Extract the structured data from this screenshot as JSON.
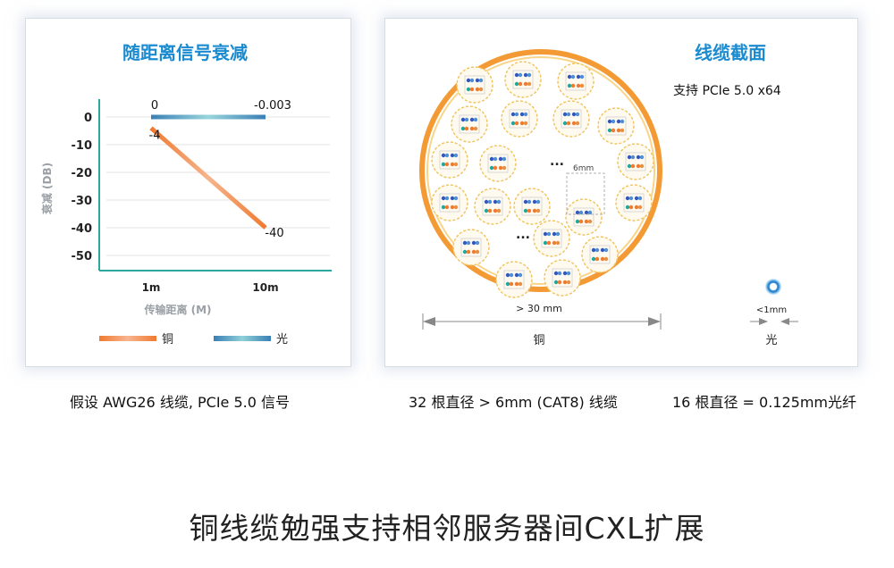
{
  "left_panel": {
    "title": "随距离信号衰减",
    "legend": [
      {
        "label": "铜",
        "color": "#f07a30"
      },
      {
        "label": "光",
        "color": "#3a8fc0"
      }
    ],
    "caption": "假设 AWG26 线缆, PCIe 5.0 信号"
  },
  "chart_data": {
    "type": "line",
    "title": "随距离信号衰减",
    "xlabel": "传输距离 (M)",
    "ylabel": "衰减 (DB)",
    "categories": [
      "1m",
      "10m"
    ],
    "yticks": [
      "0",
      "-10",
      "-20",
      "-30",
      "-40",
      "-50"
    ],
    "ylim": [
      -55,
      5
    ],
    "series": [
      {
        "name": "铜",
        "values": [
          -4,
          -40
        ],
        "labels": [
          "-4",
          "-40"
        ],
        "color": "#f07a30"
      },
      {
        "name": "光",
        "values": [
          0,
          -0.003
        ],
        "labels": [
          "0",
          "-0.003"
        ],
        "color": "#3a8fc0"
      }
    ],
    "legend_position": "bottom",
    "grid": true
  },
  "right_panel": {
    "title": "线缆截面",
    "subtitle": "支持 PCIe 5.0 x64",
    "ellipsis": "...",
    "cable_size_label": "6mm",
    "copper_width_label": "> 30 mm",
    "copper_label": "铜",
    "fiber_width_label": "<1mm",
    "fiber_label": "光",
    "caption_copper": "32 根直径 > 6mm (CAT8) 线缆",
    "caption_fiber": "16 根直径 = 0.125mm光纤"
  },
  "main_title": "铜线缆勉强支持相邻服务器间CXL扩展",
  "colors": {
    "copper": "#f07a30",
    "fiber": "#3a8fc0",
    "title_blue": "#1b8bd0",
    "axis": "#2aa8a0",
    "cable_ring": "#f3c56a"
  }
}
